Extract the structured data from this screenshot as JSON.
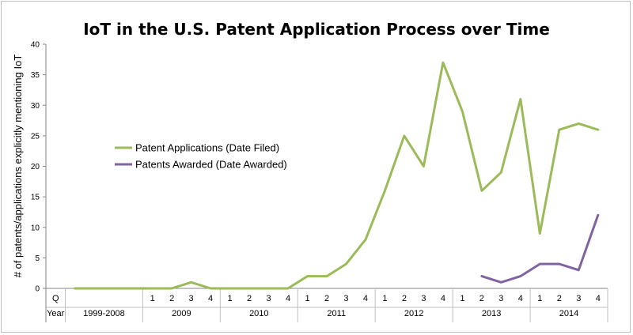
{
  "chart_data": {
    "type": "line",
    "title": "IoT in the U.S. Patent Application Process over Time",
    "ylabel": "# of patents/applications explicitly mentioning IoT",
    "xlabel": "",
    "ylim": [
      0,
      40
    ],
    "yticks": [
      0,
      5,
      10,
      15,
      20,
      25,
      30,
      35,
      40
    ],
    "grid": false,
    "legend_position": "left-middle",
    "row_labels": {
      "quarter": "Q",
      "year": "Year"
    },
    "quarters": [
      "",
      "",
      "",
      "",
      "1",
      "2",
      "3",
      "4",
      "1",
      "2",
      "3",
      "4",
      "1",
      "2",
      "3",
      "4",
      "1",
      "2",
      "3",
      "4",
      "1",
      "2",
      "3",
      "4",
      "1",
      "2",
      "3",
      "4"
    ],
    "years": [
      {
        "label": "1999-2008",
        "span": 4
      },
      {
        "label": "2009",
        "span": 4
      },
      {
        "label": "2010",
        "span": 4
      },
      {
        "label": "2011",
        "span": 4
      },
      {
        "label": "2012",
        "span": 4
      },
      {
        "label": "2013",
        "span": 4
      },
      {
        "label": "2014",
        "span": 4
      }
    ],
    "series": [
      {
        "name": "Patent Applications (Date Filed)",
        "color": "#9bbb59",
        "values": [
          0,
          0,
          0,
          0,
          0,
          0,
          1,
          0,
          0,
          0,
          0,
          0,
          2,
          2,
          4,
          8,
          16,
          25,
          20,
          37,
          29,
          16,
          19,
          31,
          9,
          26,
          27,
          26
        ]
      },
      {
        "name": "Patents Awarded (Date Awarded)",
        "color": "#8064a2",
        "values": [
          null,
          null,
          null,
          null,
          null,
          null,
          null,
          null,
          null,
          null,
          null,
          null,
          null,
          null,
          null,
          null,
          null,
          null,
          null,
          null,
          null,
          2,
          1,
          2,
          4,
          4,
          3,
          12
        ]
      }
    ]
  }
}
